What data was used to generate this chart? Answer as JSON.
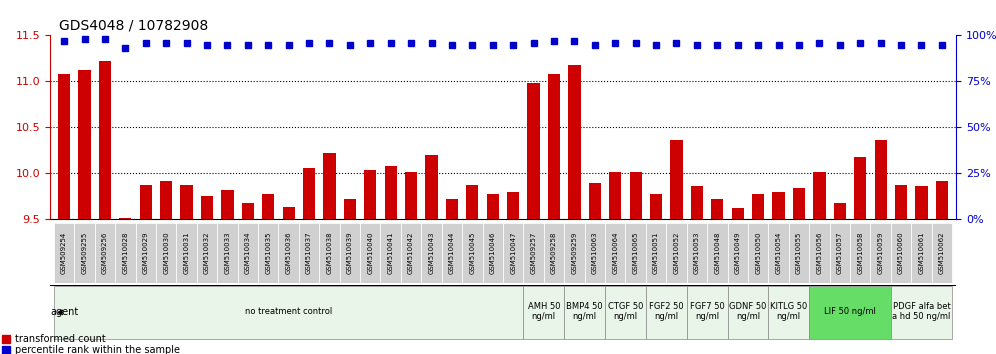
{
  "title": "GDS4048 / 10782908",
  "samples": [
    "GSM509254",
    "GSM509255",
    "GSM509256",
    "GSM510028",
    "GSM510029",
    "GSM510030",
    "GSM510031",
    "GSM510032",
    "GSM510033",
    "GSM510034",
    "GSM510035",
    "GSM510036",
    "GSM510037",
    "GSM510038",
    "GSM510039",
    "GSM510040",
    "GSM510041",
    "GSM510042",
    "GSM510043",
    "GSM510044",
    "GSM510045",
    "GSM510046",
    "GSM510047",
    "GSM509257",
    "GSM509258",
    "GSM509259",
    "GSM510063",
    "GSM510064",
    "GSM510065",
    "GSM510051",
    "GSM510052",
    "GSM510053",
    "GSM510048",
    "GSM510049",
    "GSM510050",
    "GSM510054",
    "GSM510055",
    "GSM510056",
    "GSM510057",
    "GSM510058",
    "GSM510059",
    "GSM510060",
    "GSM510061",
    "GSM510062"
  ],
  "bar_values": [
    11.08,
    11.12,
    11.22,
    9.52,
    9.88,
    9.92,
    9.88,
    9.76,
    9.82,
    9.68,
    9.78,
    9.64,
    10.06,
    10.22,
    9.72,
    10.04,
    10.08,
    10.02,
    10.2,
    9.72,
    9.88,
    9.78,
    9.8,
    10.98,
    11.08,
    11.18,
    9.9,
    10.02,
    10.02,
    9.78,
    10.36,
    9.86,
    9.72,
    9.62,
    9.78,
    9.8,
    9.84,
    10.02,
    9.68,
    10.18,
    10.36,
    9.88,
    9.86,
    9.92
  ],
  "dot_values": [
    97,
    98,
    98,
    93,
    96,
    96,
    96,
    95,
    95,
    95,
    95,
    95,
    96,
    96,
    95,
    96,
    96,
    96,
    96,
    95,
    95,
    95,
    95,
    96,
    97,
    97,
    95,
    96,
    96,
    95,
    96,
    95,
    95,
    95,
    95,
    95,
    95,
    96,
    95,
    96,
    96,
    95,
    95,
    95
  ],
  "ylim_left": [
    9.5,
    11.5
  ],
  "ylim_right": [
    0,
    100
  ],
  "yticks_left": [
    9.5,
    10.0,
    10.5,
    11.0,
    11.5
  ],
  "yticks_right": [
    0,
    25,
    50,
    75,
    100
  ],
  "bar_color": "#cc0000",
  "dot_color": "#0000cc",
  "grid_color": "#000000",
  "agent_groups": [
    {
      "label": "no treatment control",
      "start": 0,
      "end": 22,
      "color": "#e8f5e8"
    },
    {
      "label": "AMH 50\nng/ml",
      "start": 23,
      "end": 24,
      "color": "#e8f5e8"
    },
    {
      "label": "BMP4 50\nng/ml",
      "start": 25,
      "end": 26,
      "color": "#e8f5e8"
    },
    {
      "label": "CTGF 50\nng/ml",
      "start": 27,
      "end": 28,
      "color": "#e8f5e8"
    },
    {
      "label": "FGF2 50\nng/ml",
      "start": 29,
      "end": 30,
      "color": "#e8f5e8"
    },
    {
      "label": "FGF7 50\nng/ml",
      "start": 31,
      "end": 32,
      "color": "#e8f5e8"
    },
    {
      "label": "GDNF 50\nng/ml",
      "start": 33,
      "end": 34,
      "color": "#e8f5e8"
    },
    {
      "label": "KITLG 50\nng/ml",
      "start": 35,
      "end": 36,
      "color": "#e8f5e8"
    },
    {
      "label": "LIF 50 ng/ml",
      "start": 37,
      "end": 40,
      "color": "#66dd66"
    },
    {
      "label": "PDGF alfa bet\na hd 50 ng/ml",
      "start": 41,
      "end": 43,
      "color": "#e8f5e8"
    }
  ],
  "xlabel_color": "#cc0000",
  "left_axis_color": "#cc0000",
  "right_axis_color": "#0000cc",
  "background_color": "#ffffff"
}
